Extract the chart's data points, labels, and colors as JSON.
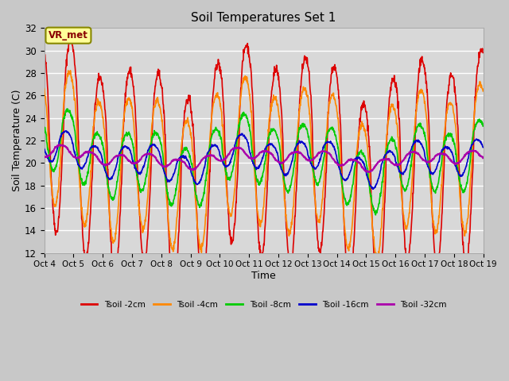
{
  "title": "Soil Temperatures Set 1",
  "xlabel": "Time",
  "ylabel": "Soil Temperature (C)",
  "ylim": [
    12,
    32
  ],
  "fig_facecolor": "#c8c8c8",
  "ax_facecolor": "#d8d8d8",
  "grid_color": "#ffffff",
  "vr_label": "VR_met",
  "x_tick_labels": [
    "Oct 4",
    "Oct 5",
    "Oct 6",
    "Oct 7",
    "Oct 8",
    "Oct 9",
    "Oct 10",
    "Oct 11",
    "Oct 12",
    "Oct 13",
    "Oct 14",
    "Oct 15",
    "Oct 16",
    "Oct 17",
    "Oct 18",
    "Oct 19"
  ],
  "series": [
    {
      "label": "Tsoil -2cm",
      "color": "#dd0000",
      "lw": 1.2
    },
    {
      "label": "Tsoil -4cm",
      "color": "#ff8800",
      "lw": 1.2
    },
    {
      "label": "Tsoil -8cm",
      "color": "#00cc00",
      "lw": 1.2
    },
    {
      "label": "Tsoil -16cm",
      "color": "#0000cc",
      "lw": 1.2
    },
    {
      "label": "Tsoil -32cm",
      "color": "#aa00aa",
      "lw": 1.5
    }
  ]
}
